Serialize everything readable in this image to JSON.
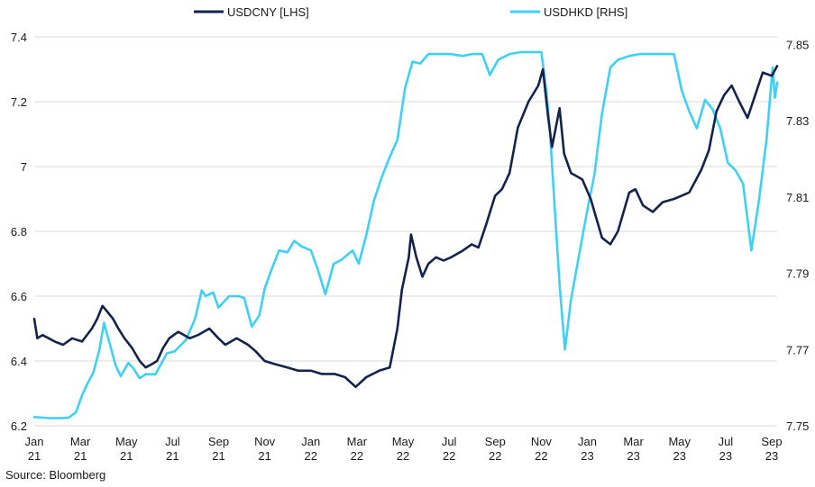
{
  "chart_data": {
    "type": "line",
    "source": "Source: Bloomberg",
    "x_tick_labels": [
      [
        "Jan",
        "21"
      ],
      [
        "Mar",
        "21"
      ],
      [
        "May",
        "21"
      ],
      [
        "Jul",
        "21"
      ],
      [
        "Sep",
        "21"
      ],
      [
        "Nov",
        "21"
      ],
      [
        "Jan",
        "22"
      ],
      [
        "Mar",
        "22"
      ],
      [
        "May",
        "22"
      ],
      [
        "Jul",
        "22"
      ],
      [
        "Sep",
        "22"
      ],
      [
        "Nov",
        "22"
      ],
      [
        "Jan",
        "23"
      ],
      [
        "Mar",
        "23"
      ],
      [
        "May",
        "23"
      ],
      [
        "Jul",
        "23"
      ],
      [
        "Sep",
        "23"
      ]
    ],
    "x_range": [
      "2021-01-01",
      "2023-09-08"
    ],
    "left_axis": {
      "ticks": [
        "6.2",
        "6.4",
        "6.6",
        "6.8",
        "7",
        "7.2",
        "7.4"
      ],
      "ylim": [
        6.2,
        7.4
      ]
    },
    "right_axis": {
      "ticks": [
        "7.75",
        "7.77",
        "7.79",
        "7.81",
        "7.83",
        "7.85"
      ],
      "ylim": [
        7.75,
        7.852
      ]
    },
    "grid": true,
    "legend_position": "top",
    "series": [
      {
        "name": "USDCNY [LHS]",
        "axis": "left",
        "color": "#14234b",
        "points": [
          [
            "2021-01-01",
            6.53
          ],
          [
            "2021-01-05",
            6.47
          ],
          [
            "2021-01-12",
            6.48
          ],
          [
            "2021-01-20",
            6.47
          ],
          [
            "2021-01-28",
            6.46
          ],
          [
            "2021-02-08",
            6.45
          ],
          [
            "2021-02-20",
            6.47
          ],
          [
            "2021-03-05",
            6.46
          ],
          [
            "2021-03-18",
            6.5
          ],
          [
            "2021-03-25",
            6.53
          ],
          [
            "2021-04-01",
            6.57
          ],
          [
            "2021-04-08",
            6.55
          ],
          [
            "2021-04-15",
            6.53
          ],
          [
            "2021-04-22",
            6.5
          ],
          [
            "2021-04-30",
            6.47
          ],
          [
            "2021-05-10",
            6.44
          ],
          [
            "2021-05-20",
            6.4
          ],
          [
            "2021-05-28",
            6.38
          ],
          [
            "2021-06-05",
            6.39
          ],
          [
            "2021-06-12",
            6.4
          ],
          [
            "2021-06-20",
            6.44
          ],
          [
            "2021-06-28",
            6.47
          ],
          [
            "2021-07-10",
            6.49
          ],
          [
            "2021-07-25",
            6.47
          ],
          [
            "2021-08-05",
            6.48
          ],
          [
            "2021-08-20",
            6.5
          ],
          [
            "2021-09-01",
            6.47
          ],
          [
            "2021-09-10",
            6.45
          ],
          [
            "2021-09-25",
            6.47
          ],
          [
            "2021-10-10",
            6.45
          ],
          [
            "2021-10-20",
            6.43
          ],
          [
            "2021-11-01",
            6.4
          ],
          [
            "2021-11-15",
            6.39
          ],
          [
            "2021-12-01",
            6.38
          ],
          [
            "2021-12-15",
            6.37
          ],
          [
            "2022-01-01",
            6.37
          ],
          [
            "2022-01-15",
            6.36
          ],
          [
            "2022-02-01",
            6.36
          ],
          [
            "2022-02-15",
            6.35
          ],
          [
            "2022-03-01",
            6.32
          ],
          [
            "2022-03-15",
            6.35
          ],
          [
            "2022-04-01",
            6.37
          ],
          [
            "2022-04-15",
            6.38
          ],
          [
            "2022-04-25",
            6.5
          ],
          [
            "2022-05-01",
            6.62
          ],
          [
            "2022-05-10",
            6.72
          ],
          [
            "2022-05-13",
            6.79
          ],
          [
            "2022-05-20",
            6.72
          ],
          [
            "2022-05-28",
            6.66
          ],
          [
            "2022-06-05",
            6.7
          ],
          [
            "2022-06-15",
            6.72
          ],
          [
            "2022-06-25",
            6.71
          ],
          [
            "2022-07-05",
            6.72
          ],
          [
            "2022-07-20",
            6.74
          ],
          [
            "2022-08-01",
            6.76
          ],
          [
            "2022-08-10",
            6.75
          ],
          [
            "2022-08-20",
            6.82
          ],
          [
            "2022-09-01",
            6.91
          ],
          [
            "2022-09-10",
            6.93
          ],
          [
            "2022-09-20",
            6.98
          ],
          [
            "2022-10-01",
            7.12
          ],
          [
            "2022-10-15",
            7.2
          ],
          [
            "2022-10-28",
            7.25
          ],
          [
            "2022-11-03",
            7.3
          ],
          [
            "2022-11-10",
            7.15
          ],
          [
            "2022-11-15",
            7.06
          ],
          [
            "2022-11-25",
            7.18
          ],
          [
            "2022-12-01",
            7.04
          ],
          [
            "2022-12-10",
            6.98
          ],
          [
            "2022-12-25",
            6.96
          ],
          [
            "2023-01-05",
            6.9
          ],
          [
            "2023-01-20",
            6.78
          ],
          [
            "2023-01-31",
            6.76
          ],
          [
            "2023-02-10",
            6.8
          ],
          [
            "2023-02-25",
            6.92
          ],
          [
            "2023-03-05",
            6.93
          ],
          [
            "2023-03-15",
            6.88
          ],
          [
            "2023-03-28",
            6.86
          ],
          [
            "2023-04-10",
            6.89
          ],
          [
            "2023-04-25",
            6.9
          ],
          [
            "2023-05-05",
            6.91
          ],
          [
            "2023-05-15",
            6.92
          ],
          [
            "2023-05-31",
            6.99
          ],
          [
            "2023-06-10",
            7.05
          ],
          [
            "2023-06-20",
            7.17
          ],
          [
            "2023-06-30",
            7.22
          ],
          [
            "2023-07-10",
            7.25
          ],
          [
            "2023-07-20",
            7.2
          ],
          [
            "2023-07-31",
            7.15
          ],
          [
            "2023-08-10",
            7.22
          ],
          [
            "2023-08-20",
            7.29
          ],
          [
            "2023-09-01",
            7.28
          ],
          [
            "2023-09-08",
            7.31
          ]
        ]
      },
      {
        "name": "USDHKD [RHS]",
        "axis": "right",
        "color": "#3fd0f4",
        "points": [
          [
            "2021-01-01",
            7.7523
          ],
          [
            "2021-01-08",
            7.7522
          ],
          [
            "2021-01-20",
            7.752
          ],
          [
            "2021-02-01",
            7.752
          ],
          [
            "2021-02-15",
            7.7521
          ],
          [
            "2021-02-25",
            7.7535
          ],
          [
            "2021-03-05",
            7.758
          ],
          [
            "2021-03-12",
            7.761
          ],
          [
            "2021-03-20",
            7.764
          ],
          [
            "2021-03-28",
            7.77
          ],
          [
            "2021-04-03",
            7.777
          ],
          [
            "2021-04-10",
            7.772
          ],
          [
            "2021-04-18",
            7.766
          ],
          [
            "2021-04-25",
            7.763
          ],
          [
            "2021-05-05",
            7.7665
          ],
          [
            "2021-05-12",
            7.765
          ],
          [
            "2021-05-20",
            7.7625
          ],
          [
            "2021-05-28",
            7.7635
          ],
          [
            "2021-06-10",
            7.7635
          ],
          [
            "2021-06-25",
            7.769
          ],
          [
            "2021-07-05",
            7.7695
          ],
          [
            "2021-07-20",
            7.7725
          ],
          [
            "2021-08-01",
            7.778
          ],
          [
            "2021-08-10",
            7.7855
          ],
          [
            "2021-08-15",
            7.784
          ],
          [
            "2021-08-25",
            7.785
          ],
          [
            "2021-09-01",
            7.781
          ],
          [
            "2021-09-15",
            7.784
          ],
          [
            "2021-09-28",
            7.784
          ],
          [
            "2021-10-05",
            7.7835
          ],
          [
            "2021-10-15",
            7.776
          ],
          [
            "2021-10-25",
            7.779
          ],
          [
            "2021-11-01",
            7.786
          ],
          [
            "2021-11-10",
            7.791
          ],
          [
            "2021-11-20",
            7.796
          ],
          [
            "2021-12-01",
            7.7955
          ],
          [
            "2021-12-10",
            7.7985
          ],
          [
            "2021-12-20",
            7.797
          ],
          [
            "2022-01-01",
            7.796
          ],
          [
            "2022-01-10",
            7.791
          ],
          [
            "2022-01-20",
            7.7845
          ],
          [
            "2022-01-31",
            7.7925
          ],
          [
            "2022-02-10",
            7.7935
          ],
          [
            "2022-02-25",
            7.796
          ],
          [
            "2022-03-05",
            7.7925
          ],
          [
            "2022-03-15",
            7.8
          ],
          [
            "2022-03-25",
            7.809
          ],
          [
            "2022-04-05",
            7.8155
          ],
          [
            "2022-04-15",
            7.8205
          ],
          [
            "2022-04-25",
            7.825
          ],
          [
            "2022-05-05",
            7.8385
          ],
          [
            "2022-05-15",
            7.8455
          ],
          [
            "2022-05-25",
            7.845
          ],
          [
            "2022-06-05",
            7.8475
          ],
          [
            "2022-06-20",
            7.8475
          ],
          [
            "2022-07-05",
            7.8475
          ],
          [
            "2022-07-20",
            7.847
          ],
          [
            "2022-08-01",
            7.8475
          ],
          [
            "2022-08-15",
            7.8475
          ],
          [
            "2022-08-25",
            7.842
          ],
          [
            "2022-09-05",
            7.846
          ],
          [
            "2022-09-20",
            7.8475
          ],
          [
            "2022-10-05",
            7.848
          ],
          [
            "2022-10-20",
            7.848
          ],
          [
            "2022-11-01",
            7.848
          ],
          [
            "2022-11-08",
            7.837
          ],
          [
            "2022-11-12",
            7.828
          ],
          [
            "2022-11-18",
            7.809
          ],
          [
            "2022-11-25",
            7.787
          ],
          [
            "2022-12-02",
            7.77
          ],
          [
            "2022-12-10",
            7.783
          ],
          [
            "2022-12-20",
            7.794
          ],
          [
            "2022-12-31",
            7.806
          ],
          [
            "2023-01-10",
            7.816
          ],
          [
            "2023-01-20",
            7.832
          ],
          [
            "2023-01-31",
            7.844
          ],
          [
            "2023-02-10",
            7.846
          ],
          [
            "2023-02-25",
            7.847
          ],
          [
            "2023-03-10",
            7.8475
          ],
          [
            "2023-03-25",
            7.8475
          ],
          [
            "2023-04-10",
            7.8475
          ],
          [
            "2023-04-25",
            7.8475
          ],
          [
            "2023-05-05",
            7.838
          ],
          [
            "2023-05-15",
            7.8325
          ],
          [
            "2023-05-25",
            7.828
          ],
          [
            "2023-06-05",
            7.8355
          ],
          [
            "2023-06-15",
            7.833
          ],
          [
            "2023-06-25",
            7.828
          ],
          [
            "2023-07-05",
            7.819
          ],
          [
            "2023-07-15",
            7.817
          ],
          [
            "2023-07-25",
            7.8135
          ],
          [
            "2023-08-05",
            7.796
          ],
          [
            "2023-08-15",
            7.809
          ],
          [
            "2023-08-25",
            7.825
          ],
          [
            "2023-09-02",
            7.844
          ],
          [
            "2023-09-05",
            7.836
          ],
          [
            "2023-09-08",
            7.84
          ]
        ]
      }
    ]
  }
}
